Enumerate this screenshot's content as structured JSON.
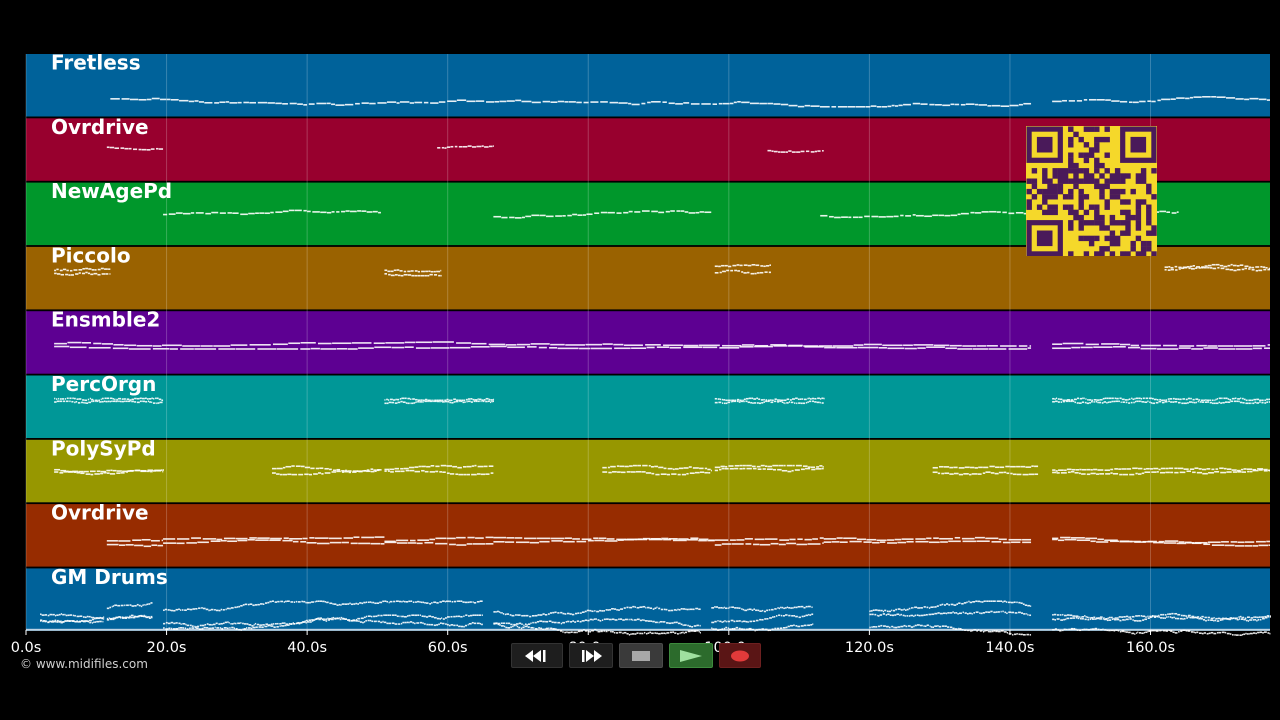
{
  "timeline": {
    "time_range": [
      0,
      177
    ],
    "ticks": [
      {
        "t": 0,
        "label": "0.0s"
      },
      {
        "t": 20,
        "label": "20.0s"
      },
      {
        "t": 40,
        "label": "40.0s"
      },
      {
        "t": 60,
        "label": "60.0s"
      },
      {
        "t": 80,
        "label": "80.0s"
      },
      {
        "t": 100,
        "label": "100.0s"
      },
      {
        "t": 120,
        "label": "120.0s"
      },
      {
        "t": 140,
        "label": "140.0s"
      },
      {
        "t": 160,
        "label": "160.0s"
      }
    ]
  },
  "tracks": [
    {
      "name": "Fretless",
      "color": "#00629a"
    },
    {
      "name": "Ovrdrive",
      "color": "#98002e"
    },
    {
      "name": "NewAgePd",
      "color": "#00972b"
    },
    {
      "name": "Piccolo",
      "color": "#9a6200"
    },
    {
      "name": "Ensmble2",
      "color": "#5d0092"
    },
    {
      "name": "PercOrgn",
      "color": "#009797"
    },
    {
      "name": "PolySyPd",
      "color": "#979700"
    },
    {
      "name": "Ovrdrive",
      "color": "#972c00"
    },
    {
      "name": "GM Drums",
      "color": "#00629a"
    }
  ],
  "copyright": "© www.midifiles.com",
  "transport": {
    "rewind_icon": "rewind-icon",
    "forward_icon": "fast-forward-icon",
    "stop_icon": "stop-icon",
    "play_icon": "play-icon",
    "record_icon": "record-icon"
  },
  "qr_code": {
    "icon": "qr-code-icon",
    "color_fg": "#4a1a5a",
    "color_bg": "#f5d82a"
  }
}
